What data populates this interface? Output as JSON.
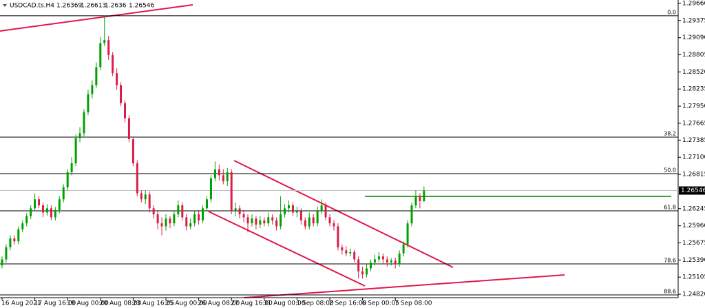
{
  "chart_data": {
    "type": "candlestick",
    "symbol": "USDCAD.ts.H4",
    "ylim": [
      1.24763,
      1.29717
    ],
    "yticks": [
      {
        "value": 1.2966,
        "label": "1.29660"
      },
      1.29375,
      {
        "value": 1.2909,
        "label": "1.29090"
      },
      1.28805,
      {
        "value": 1.2852,
        "label": "1.28520"
      },
      1.28235,
      {
        "value": 1.2795,
        "label": "1.27950"
      },
      1.27665,
      1.27385,
      {
        "value": 1.271,
        "label": "1.27100"
      },
      1.26815,
      1.26245,
      {
        "value": 1.2596,
        "label": "1.25960"
      },
      1.25675,
      {
        "value": 1.2539,
        "label": "1.25390"
      },
      1.25105,
      {
        "value": 1.2482,
        "label": "1.24820"
      }
    ],
    "up_color": "#00a000",
    "down_color": "#d81e48",
    "levels": [
      {
        "value": 1.29454,
        "label": "0.0"
      },
      {
        "value": 1.27435,
        "label": "38.2"
      },
      {
        "value": 1.26827,
        "label": "50.0"
      },
      {
        "value": 1.26208,
        "label": "61.8"
      },
      {
        "value": 1.25325,
        "label": "78.6"
      },
      {
        "value": 1.24809,
        "label": "88.6"
      }
    ],
    "categories": [
      "16 Aug 2021",
      null,
      null,
      null,
      null,
      null,
      null,
      null,
      "17 Aug 16:00",
      null,
      null,
      null,
      null,
      null,
      null,
      null,
      "19 Aug 00:00",
      null,
      null,
      null,
      null,
      null,
      null,
      null,
      "20 Aug 08:00",
      null,
      null,
      null,
      null,
      null,
      null,
      null,
      "23 Aug 16:05",
      null,
      null,
      null,
      null,
      null,
      null,
      null,
      "25 Aug 00:00",
      null,
      null,
      null,
      null,
      null,
      null,
      null,
      "26 Aug 08:00",
      null,
      null,
      null,
      null,
      null,
      null,
      null,
      "27 Aug 16:00",
      null,
      null,
      null,
      null,
      null,
      null,
      null,
      "31 Aug 00:00",
      null,
      null,
      null,
      null,
      null,
      null,
      null,
      "1 Sep 08:00",
      null,
      null,
      null,
      null,
      null,
      null,
      null,
      "2 Sep 16:00",
      null,
      null,
      null,
      null,
      null,
      null,
      null,
      "6 Sep 00:05",
      null,
      null,
      null,
      null,
      null,
      null,
      null,
      "7 Sep 08:00",
      null,
      null,
      null,
      null,
      null,
      null,
      null
    ],
    "open": [
      1.253,
      1.254,
      1.256,
      1.2575,
      1.257,
      1.259,
      1.26,
      1.2612,
      1.2625,
      1.264,
      1.263,
      1.2618,
      1.2625,
      1.261,
      1.2622,
      1.264,
      1.266,
      1.2685,
      1.27,
      1.2742,
      1.275,
      1.2785,
      1.2815,
      1.283,
      1.286,
      1.29,
      1.2905,
      1.288,
      1.285,
      1.283,
      1.28,
      1.2775,
      1.274,
      1.27,
      1.265,
      1.264,
      1.2648,
      1.2625,
      1.2615,
      1.26,
      1.2595,
      1.2608,
      1.26,
      1.2615,
      1.263,
      1.261,
      1.2595,
      1.26,
      1.2615,
      1.2605,
      1.2625,
      1.264,
      1.2675,
      1.269,
      1.268,
      1.267,
      1.2685,
      1.262,
      1.2625,
      1.2615,
      1.261,
      1.26,
      1.2608,
      1.2598,
      1.2605,
      1.26,
      1.261,
      1.2605,
      1.2595,
      1.2615,
      1.2625,
      1.263,
      1.2618,
      1.262,
      1.2605,
      1.2595,
      1.261,
      1.26,
      1.262,
      1.263,
      1.261,
      1.26,
      1.2595,
      1.256,
      1.2555,
      1.255,
      1.2552,
      1.254,
      1.252,
      1.2515,
      1.2525,
      1.2535,
      1.254,
      1.2545,
      1.254,
      1.2535,
      1.2538,
      1.2532,
      1.255,
      1.2565,
      1.26,
      1.263,
      1.2645,
      1.26369
    ],
    "high": [
      1.2545,
      1.2565,
      1.258,
      1.258,
      1.2595,
      1.2605,
      1.2617,
      1.263,
      1.265,
      1.2645,
      1.2635,
      1.2632,
      1.263,
      1.2627,
      1.2645,
      1.2665,
      1.269,
      1.271,
      1.2748,
      1.276,
      1.279,
      1.2822,
      1.2838,
      1.2868,
      1.291,
      1.2946,
      1.2912,
      1.2885,
      1.2858,
      1.2835,
      1.2805,
      1.278,
      1.2745,
      1.2705,
      1.2655,
      1.2655,
      1.2653,
      1.263,
      1.262,
      1.261,
      1.2615,
      1.2612,
      1.262,
      1.2638,
      1.2635,
      1.2615,
      1.2608,
      1.262,
      1.2622,
      1.263,
      1.2645,
      1.268,
      1.2703,
      1.2698,
      1.269,
      1.2692,
      1.269,
      1.2635,
      1.263,
      1.2622,
      1.2615,
      1.2615,
      1.2612,
      1.2612,
      1.261,
      1.2618,
      1.2615,
      1.261,
      1.2645,
      1.2632,
      1.2638,
      1.2635,
      1.2628,
      1.2625,
      1.261,
      1.2618,
      1.2615,
      1.2628,
      1.264,
      1.2635,
      1.2615,
      1.2605,
      1.26,
      1.2565,
      1.2562,
      1.2558,
      1.2556,
      1.2545,
      1.2528,
      1.2532,
      1.254,
      1.2548,
      1.2552,
      1.255,
      1.2545,
      1.2542,
      1.2543,
      1.2555,
      1.257,
      1.2605,
      1.2635,
      1.2655,
      1.265,
      1.26613
    ],
    "low": [
      1.2525,
      1.2535,
      1.2555,
      1.2565,
      1.2565,
      1.2585,
      1.2595,
      1.2607,
      1.262,
      1.2625,
      1.261,
      1.2613,
      1.2605,
      1.2605,
      1.2617,
      1.2635,
      1.2655,
      1.268,
      1.2695,
      1.2735,
      1.2745,
      1.278,
      1.2808,
      1.2825,
      1.2855,
      1.2895,
      1.2872,
      1.2845,
      1.2822,
      1.2795,
      1.2768,
      1.2735,
      1.2695,
      1.2645,
      1.2635,
      1.2632,
      1.2618,
      1.2608,
      1.259,
      1.258,
      1.2588,
      1.2592,
      1.2595,
      1.261,
      1.2605,
      1.2588,
      1.259,
      1.2595,
      1.2598,
      1.26,
      1.262,
      1.2635,
      1.267,
      1.2672,
      1.2665,
      1.2662,
      1.2615,
      1.2612,
      1.2608,
      1.2602,
      1.2585,
      1.2595,
      1.259,
      1.2592,
      1.2595,
      1.2595,
      1.2598,
      1.2588,
      1.259,
      1.261,
      1.2618,
      1.2612,
      1.261,
      1.2598,
      1.259,
      1.259,
      1.2595,
      1.2595,
      1.2615,
      1.2605,
      1.2595,
      1.2588,
      1.2555,
      1.2548,
      1.2545,
      1.2545,
      1.2535,
      1.2508,
      1.2508,
      1.251,
      1.252,
      1.253,
      1.2535,
      1.2532,
      1.2528,
      1.253,
      1.2525,
      1.2528,
      1.2545,
      1.256,
      1.2595,
      1.2625,
      1.2625,
      1.2636
    ],
    "close": [
      1.254,
      1.256,
      1.2575,
      1.257,
      1.259,
      1.26,
      1.2612,
      1.2625,
      1.264,
      1.263,
      1.2618,
      1.2625,
      1.261,
      1.2622,
      1.264,
      1.266,
      1.2685,
      1.27,
      1.2742,
      1.275,
      1.2785,
      1.2815,
      1.283,
      1.286,
      1.29,
      1.2905,
      1.288,
      1.285,
      1.283,
      1.28,
      1.2775,
      1.274,
      1.27,
      1.265,
      1.264,
      1.2648,
      1.2625,
      1.2615,
      1.26,
      1.2595,
      1.2608,
      1.26,
      1.2615,
      1.263,
      1.261,
      1.2595,
      1.26,
      1.2615,
      1.2605,
      1.2625,
      1.264,
      1.2675,
      1.269,
      1.268,
      1.267,
      1.2685,
      1.262,
      1.2625,
      1.2615,
      1.261,
      1.26,
      1.2608,
      1.2598,
      1.2605,
      1.26,
      1.261,
      1.2605,
      1.2595,
      1.2615,
      1.2625,
      1.263,
      1.2618,
      1.262,
      1.2605,
      1.2595,
      1.261,
      1.26,
      1.262,
      1.263,
      1.261,
      1.26,
      1.2595,
      1.256,
      1.2555,
      1.255,
      1.2552,
      1.254,
      1.252,
      1.2515,
      1.2525,
      1.2535,
      1.254,
      1.2545,
      1.254,
      1.2535,
      1.2538,
      1.2532,
      1.255,
      1.2565,
      1.26,
      1.263,
      1.2645,
      1.2637,
      1.26546
    ]
  }
}
